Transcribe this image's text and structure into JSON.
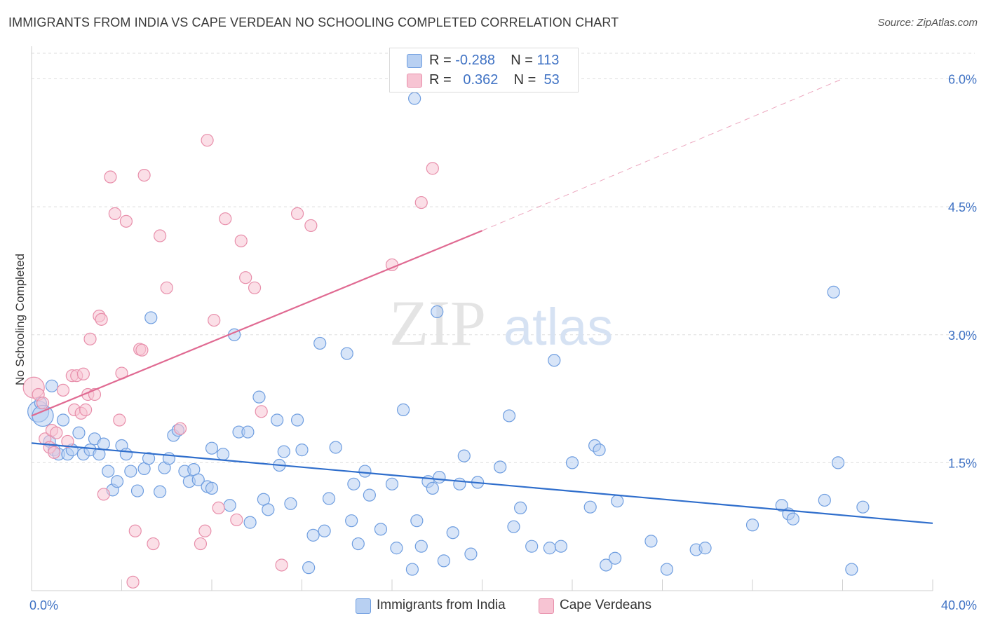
{
  "title": "IMMIGRANTS FROM INDIA VS CAPE VERDEAN NO SCHOOLING COMPLETED CORRELATION CHART",
  "source": "Source: ZipAtlas.com",
  "watermark": {
    "zip": "ZIP",
    "atlas": "atlas"
  },
  "legend": {
    "india": {
      "r_label": "R =",
      "r_value": "-0.288",
      "n_label": "N =",
      "n_value": "113"
    },
    "cape": {
      "r_label": "R =",
      "r_value": "0.362",
      "n_label": "N =",
      "n_value": "53"
    }
  },
  "colors": {
    "india_fill": "#b8d0f2",
    "india_stroke": "#6f9ee0",
    "india_line": "#2f6ecc",
    "cape_fill": "#f7c4d3",
    "cape_stroke": "#e88fab",
    "cape_line": "#e06a92",
    "axis_label": "#3f72c4",
    "grid": "#dddddd"
  },
  "chart_data": {
    "type": "scatter",
    "ylabel": "No Schooling Completed",
    "x_tick_labels": {
      "min": "0.0%",
      "max": "40.0%"
    },
    "xlim": [
      0,
      40
    ],
    "ylim": [
      0,
      6.3
    ],
    "y_ticks": [
      {
        "value": 1.5,
        "label": "1.5%"
      },
      {
        "value": 3.0,
        "label": "3.0%"
      },
      {
        "value": 4.5,
        "label": "4.5%"
      },
      {
        "value": 6.0,
        "label": "6.0%"
      }
    ],
    "grid": true,
    "legend_position": "top-center and bottom",
    "series": [
      {
        "name": "Immigrants from India",
        "key": "india",
        "trend": {
          "x": [
            0,
            40
          ],
          "y": [
            1.73,
            0.79
          ],
          "dashed_to": null
        },
        "points": [
          [
            0.3,
            2.1
          ],
          [
            0.4,
            2.2
          ],
          [
            0.5,
            2.05
          ],
          [
            0.8,
            1.75
          ],
          [
            0.9,
            2.4
          ],
          [
            1.0,
            1.65
          ],
          [
            1.2,
            1.6
          ],
          [
            1.4,
            2.0
          ],
          [
            1.6,
            1.6
          ],
          [
            1.8,
            1.65
          ],
          [
            2.1,
            1.85
          ],
          [
            2.3,
            1.6
          ],
          [
            2.6,
            1.65
          ],
          [
            2.8,
            1.78
          ],
          [
            3.0,
            1.6
          ],
          [
            3.2,
            1.72
          ],
          [
            3.4,
            1.4
          ],
          [
            3.6,
            1.18
          ],
          [
            3.8,
            1.28
          ],
          [
            4.0,
            1.7
          ],
          [
            4.2,
            1.6
          ],
          [
            4.4,
            1.4
          ],
          [
            4.7,
            1.17
          ],
          [
            5.0,
            1.43
          ],
          [
            5.2,
            1.55
          ],
          [
            5.3,
            3.2
          ],
          [
            5.7,
            1.16
          ],
          [
            5.9,
            1.44
          ],
          [
            6.1,
            1.55
          ],
          [
            6.3,
            1.82
          ],
          [
            6.5,
            1.88
          ],
          [
            6.8,
            1.4
          ],
          [
            7.0,
            1.28
          ],
          [
            7.2,
            1.42
          ],
          [
            7.4,
            1.3
          ],
          [
            7.8,
            1.22
          ],
          [
            8.0,
            1.67
          ],
          [
            8.0,
            1.2
          ],
          [
            8.5,
            1.6
          ],
          [
            8.8,
            1.0
          ],
          [
            9.0,
            3.0
          ],
          [
            9.2,
            1.86
          ],
          [
            9.6,
            1.86
          ],
          [
            9.7,
            0.8
          ],
          [
            10.1,
            2.27
          ],
          [
            10.3,
            1.07
          ],
          [
            10.5,
            0.95
          ],
          [
            10.9,
            2.0
          ],
          [
            11.0,
            1.47
          ],
          [
            11.2,
            1.63
          ],
          [
            11.5,
            1.02
          ],
          [
            11.8,
            2.0
          ],
          [
            12.0,
            1.65
          ],
          [
            12.3,
            0.27
          ],
          [
            12.5,
            0.65
          ],
          [
            12.8,
            2.9
          ],
          [
            13.0,
            0.7
          ],
          [
            13.2,
            1.08
          ],
          [
            13.5,
            1.68
          ],
          [
            14.0,
            2.78
          ],
          [
            14.2,
            0.82
          ],
          [
            14.3,
            1.25
          ],
          [
            14.5,
            0.55
          ],
          [
            14.8,
            1.4
          ],
          [
            15.0,
            1.12
          ],
          [
            15.5,
            0.72
          ],
          [
            16.0,
            1.25
          ],
          [
            16.2,
            0.5
          ],
          [
            16.5,
            2.12
          ],
          [
            16.9,
            0.25
          ],
          [
            17.0,
            5.77
          ],
          [
            17.1,
            0.82
          ],
          [
            17.3,
            0.52
          ],
          [
            17.6,
            1.28
          ],
          [
            17.8,
            1.2
          ],
          [
            18.0,
            3.27
          ],
          [
            18.1,
            1.33
          ],
          [
            18.3,
            0.35
          ],
          [
            18.7,
            0.68
          ],
          [
            19.0,
            1.25
          ],
          [
            19.2,
            1.58
          ],
          [
            19.5,
            0.43
          ],
          [
            19.8,
            1.27
          ],
          [
            20.8,
            1.45
          ],
          [
            21.2,
            2.05
          ],
          [
            21.4,
            0.75
          ],
          [
            21.7,
            0.97
          ],
          [
            22.2,
            0.52
          ],
          [
            23.0,
            0.5
          ],
          [
            23.2,
            2.7
          ],
          [
            23.5,
            0.52
          ],
          [
            24.0,
            1.5
          ],
          [
            24.8,
            0.98
          ],
          [
            25.0,
            1.7
          ],
          [
            25.2,
            1.65
          ],
          [
            25.5,
            0.3
          ],
          [
            25.9,
            0.38
          ],
          [
            26.0,
            1.05
          ],
          [
            27.5,
            0.58
          ],
          [
            28.2,
            0.25
          ],
          [
            29.5,
            0.48
          ],
          [
            29.9,
            0.5
          ],
          [
            32.0,
            0.77
          ],
          [
            33.3,
            1.0
          ],
          [
            33.6,
            0.9
          ],
          [
            33.8,
            0.84
          ],
          [
            35.2,
            1.06
          ],
          [
            35.6,
            3.5
          ],
          [
            35.8,
            1.5
          ],
          [
            36.4,
            0.25
          ],
          [
            36.9,
            0.98
          ]
        ]
      },
      {
        "name": "Cape Verdeans",
        "key": "cape",
        "trend": {
          "x": [
            0,
            20
          ],
          "y": [
            2.05,
            4.22
          ],
          "dashed_to": {
            "x": 36,
            "y": 6.0
          }
        },
        "points": [
          [
            0.1,
            2.38
          ],
          [
            0.3,
            2.3
          ],
          [
            0.5,
            2.2
          ],
          [
            0.6,
            1.78
          ],
          [
            0.8,
            1.68
          ],
          [
            0.9,
            1.88
          ],
          [
            1.0,
            1.62
          ],
          [
            1.1,
            1.85
          ],
          [
            1.4,
            2.35
          ],
          [
            1.6,
            1.75
          ],
          [
            1.8,
            2.52
          ],
          [
            1.9,
            2.12
          ],
          [
            2.0,
            2.52
          ],
          [
            2.2,
            2.08
          ],
          [
            2.3,
            2.54
          ],
          [
            2.4,
            2.12
          ],
          [
            2.5,
            2.3
          ],
          [
            2.6,
            2.95
          ],
          [
            2.8,
            2.3
          ],
          [
            3.0,
            3.22
          ],
          [
            3.1,
            3.18
          ],
          [
            3.2,
            1.13
          ],
          [
            3.5,
            4.85
          ],
          [
            3.7,
            4.42
          ],
          [
            3.9,
            2.0
          ],
          [
            4.0,
            2.55
          ],
          [
            4.2,
            4.33
          ],
          [
            4.5,
            0.1
          ],
          [
            4.6,
            0.7
          ],
          [
            4.8,
            2.83
          ],
          [
            4.9,
            2.82
          ],
          [
            5.0,
            4.87
          ],
          [
            5.4,
            0.55
          ],
          [
            5.7,
            4.16
          ],
          [
            6.0,
            3.55
          ],
          [
            6.6,
            1.9
          ],
          [
            7.5,
            0.55
          ],
          [
            7.7,
            0.7
          ],
          [
            7.8,
            5.28
          ],
          [
            8.1,
            3.17
          ],
          [
            8.3,
            0.97
          ],
          [
            8.6,
            4.36
          ],
          [
            9.1,
            0.83
          ],
          [
            9.3,
            4.1
          ],
          [
            9.5,
            3.67
          ],
          [
            9.9,
            3.55
          ],
          [
            10.2,
            2.1
          ],
          [
            11.1,
            0.3
          ],
          [
            11.8,
            4.42
          ],
          [
            12.4,
            4.28
          ],
          [
            16.0,
            3.82
          ],
          [
            17.3,
            4.55
          ],
          [
            17.8,
            4.95
          ]
        ]
      }
    ]
  },
  "bottom_legend": {
    "india": "Immigrants from India",
    "cape": "Cape Verdeans"
  }
}
